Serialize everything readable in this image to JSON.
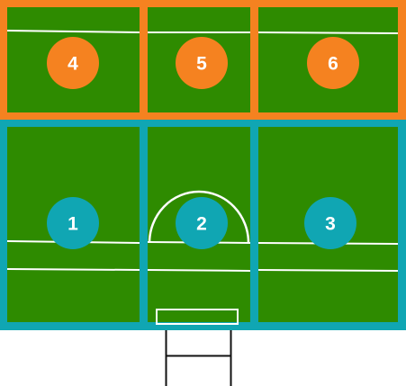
{
  "colors": {
    "background": "#ffffff",
    "grass": "#2e8b00",
    "field_line": "#ffffff",
    "top_zone_accent": "#f58220",
    "bottom_zone_accent": "#10a6b3",
    "post": "#111111"
  },
  "zones": [
    {
      "number": "1",
      "group": "bottom"
    },
    {
      "number": "2",
      "group": "bottom"
    },
    {
      "number": "3",
      "group": "bottom"
    },
    {
      "number": "4",
      "group": "top"
    },
    {
      "number": "5",
      "group": "top"
    },
    {
      "number": "6",
      "group": "top"
    }
  ]
}
